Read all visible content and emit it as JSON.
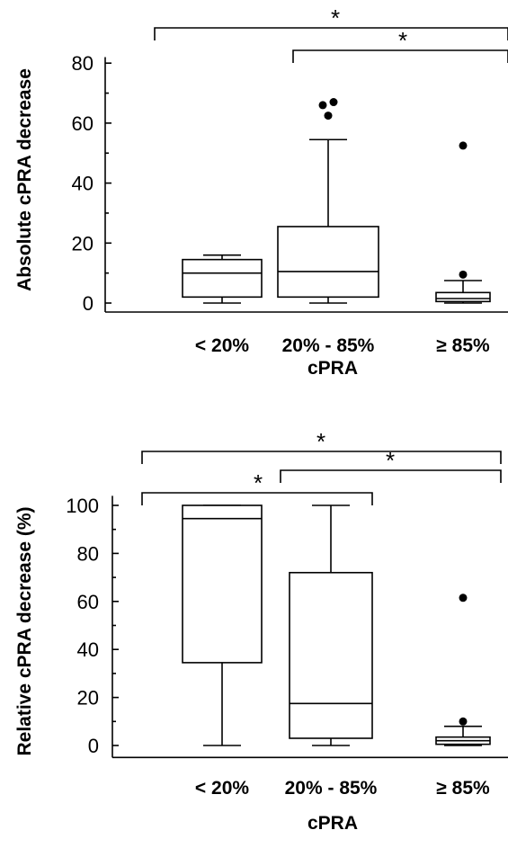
{
  "chart_data": [
    {
      "type": "box",
      "ylabel": "Absolute cPRA decrease",
      "xlabel": "cPRA",
      "ylim": [
        -3,
        82
      ],
      "yticks": [
        0,
        20,
        40,
        60,
        80
      ],
      "categories": [
        "< 20%",
        "20% - 85%",
        "≥ 85%"
      ],
      "boxes": [
        {
          "min": 0,
          "q1": 2,
          "median": 10,
          "q3": 14.5,
          "max": 16,
          "outliers": []
        },
        {
          "min": 0,
          "q1": 2,
          "median": 10.5,
          "q3": 25.5,
          "max": 54.5,
          "outliers": [
            62.5,
            66,
            67
          ]
        },
        {
          "min": 0,
          "q1": 0.5,
          "median": 1.5,
          "q3": 3.5,
          "max": 7.5,
          "outliers": [
            9.5,
            52.5
          ]
        }
      ],
      "significance": [
        {
          "from": 0,
          "to": 2,
          "label": "*"
        },
        {
          "from": 1,
          "to": 2,
          "label": "*"
        }
      ]
    },
    {
      "type": "box",
      "ylabel": "Relative cPRA decrease (%)",
      "xlabel": "cPRA",
      "ylim": [
        -5,
        104
      ],
      "yticks": [
        0,
        20,
        40,
        60,
        80,
        100
      ],
      "categories": [
        "< 20%",
        "20% - 85%",
        "≥ 85%"
      ],
      "boxes": [
        {
          "min": 0,
          "q1": 34.5,
          "median": 94.5,
          "q3": 100,
          "max": 100,
          "outliers": []
        },
        {
          "min": 0,
          "q1": 3,
          "median": 17.5,
          "q3": 72,
          "max": 100,
          "outliers": []
        },
        {
          "min": 0,
          "q1": 0.5,
          "median": 2,
          "q3": 3.5,
          "max": 8,
          "outliers": [
            10,
            61.5
          ]
        }
      ],
      "significance": [
        {
          "from": 0,
          "to": 2,
          "label": "*"
        },
        {
          "from": 1,
          "to": 2,
          "label": "*"
        },
        {
          "from": 0,
          "to": 1,
          "label": "*"
        }
      ]
    }
  ]
}
